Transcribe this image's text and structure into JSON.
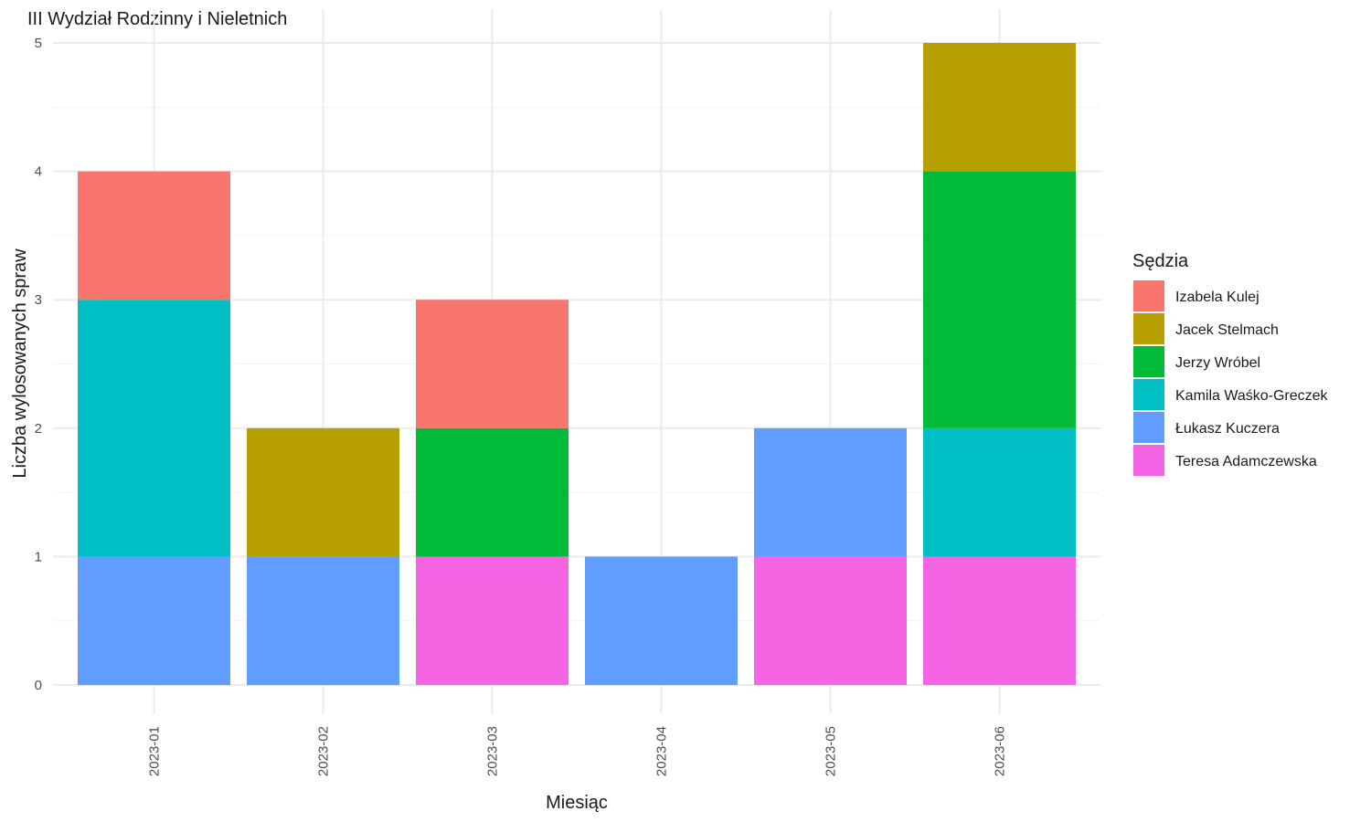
{
  "chart_data": {
    "type": "bar",
    "stacked": true,
    "title": "III Wydział Rodzinny i Nieletnich",
    "xlabel": "Miesiąc",
    "ylabel": "Liczba wylosowanych spraw",
    "categories": [
      "2023-01",
      "2023-02",
      "2023-03",
      "2023-04",
      "2023-05",
      "2023-06"
    ],
    "ylim": [
      0,
      5
    ],
    "yticks": [
      "0",
      "1",
      "2",
      "3",
      "4",
      "5"
    ],
    "grid": true,
    "legend": {
      "title": "Sędzia",
      "placement": "right"
    },
    "series": [
      {
        "name": "Izabela Kulej",
        "color": "#F8766D",
        "values": [
          1,
          0,
          1,
          0,
          0,
          0
        ]
      },
      {
        "name": "Jacek Stelmach",
        "color": "#B79F00",
        "values": [
          0,
          1,
          0,
          0,
          0,
          1
        ]
      },
      {
        "name": "Jerzy Wróbel",
        "color": "#00BA38",
        "values": [
          0,
          0,
          1,
          0,
          0,
          2
        ]
      },
      {
        "name": "Kamila Waśko-Greczek",
        "color": "#00BFC4",
        "values": [
          2,
          0,
          0,
          0,
          0,
          1
        ]
      },
      {
        "name": "Łukasz Kuczera",
        "color": "#619CFF",
        "values": [
          1,
          1,
          0,
          1,
          1,
          0
        ]
      },
      {
        "name": "Teresa Adamczewska",
        "color": "#F564E3",
        "values": [
          0,
          0,
          1,
          0,
          1,
          1
        ]
      }
    ]
  }
}
